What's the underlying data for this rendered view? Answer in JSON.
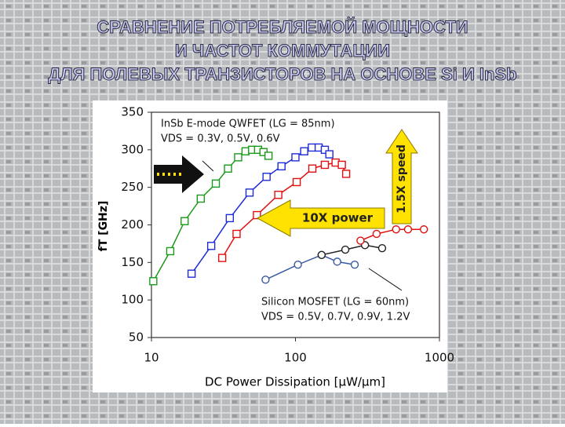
{
  "slide_title": [
    "СРАВНЕНИЕ ПОТРЕБЛЯЕМОЙ МОЩНОСТИ",
    "И ЧАСТОТ КОММУТАЦИИ",
    "ДЛЯ ПОЛЕВЫХ ТРАНЗИСТОРОВ НА ОСНОВЕ Si И InSb"
  ],
  "chart_data": {
    "type": "line",
    "xscale": "log",
    "xlabel": "DC Power Dissipation [μW/μm]",
    "ylabel": "fT [GHz]",
    "xlim": [
      10,
      1000
    ],
    "xticks": [
      10,
      100,
      1000
    ],
    "ylim": [
      50,
      350
    ],
    "yticks": [
      50,
      100,
      150,
      200,
      250,
      300,
      350
    ],
    "annotations": [
      "InSb E-mode QWFET (LG = 85nm)",
      "VDS = 0.3V, 0.5V, 0.6V",
      "10X power",
      "1.5X speed",
      "Silicon MOSFET (LG = 60nm)",
      "VDS = 0.5V, 0.7V, 0.9V, 1.2V"
    ],
    "series": [
      {
        "color": "#1a9a1a",
        "marker": "square",
        "x": [
          10.3,
          13.5,
          17,
          22,
          28,
          34,
          40,
          45,
          50,
          55,
          60,
          65
        ],
        "values": [
          125,
          165,
          205,
          235,
          255,
          275,
          290,
          298,
          300,
          300,
          297,
          292
        ]
      },
      {
        "color": "#1e2bd8",
        "marker": "square",
        "x": [
          19,
          26,
          35,
          48,
          63,
          80,
          100,
          115,
          130,
          145,
          160,
          172
        ],
        "values": [
          135,
          172,
          209,
          243,
          264,
          278,
          290,
          298,
          303,
          303,
          300,
          294
        ]
      },
      {
        "color": "#e01010",
        "marker": "square",
        "x": [
          31,
          39,
          54,
          76,
          102,
          131,
          160,
          190,
          210,
          225
        ],
        "values": [
          156,
          188,
          213,
          240,
          257,
          275,
          280,
          283,
          280,
          268
        ]
      },
      {
        "color": "#3a5aa0",
        "marker": "circle",
        "x": [
          62,
          104,
          152,
          195,
          258
        ],
        "values": [
          127,
          147,
          160,
          151,
          147
        ]
      },
      {
        "color": "#222222",
        "marker": "circle",
        "x": [
          152,
          222,
          304,
          400
        ],
        "values": [
          160,
          167,
          173,
          169
        ]
      },
      {
        "color": "#e01010",
        "marker": "circle",
        "x": [
          283,
          366,
          500,
          605,
          780
        ],
        "values": [
          179,
          188,
          194,
          194,
          194
        ]
      }
    ]
  }
}
